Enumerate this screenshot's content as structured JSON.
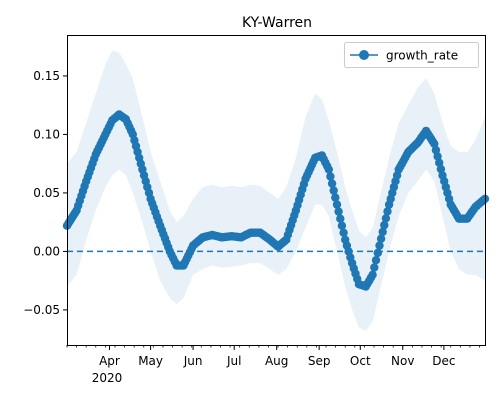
{
  "chart_data": {
    "type": "line",
    "title": "KY-Warren",
    "xlabel": "",
    "ylabel": "",
    "x_year_label": "2020",
    "ylim": [
      -0.08,
      0.185
    ],
    "x_range": [
      "2020-03-01",
      "2020-12-31"
    ],
    "y_ticks": [
      {
        "value": -0.05,
        "label": "−0.05"
      },
      {
        "value": 0.0,
        "label": "0.00"
      },
      {
        "value": 0.05,
        "label": "0.05"
      },
      {
        "value": 0.1,
        "label": "0.10"
      },
      {
        "value": 0.15,
        "label": "0.15"
      }
    ],
    "x_ticks": [
      {
        "date": "2020-04-01",
        "label": "Apr"
      },
      {
        "date": "2020-05-01",
        "label": "May"
      },
      {
        "date": "2020-06-01",
        "label": "Jun"
      },
      {
        "date": "2020-07-01",
        "label": "Jul"
      },
      {
        "date": "2020-08-01",
        "label": "Aug"
      },
      {
        "date": "2020-09-01",
        "label": "Sep"
      },
      {
        "date": "2020-10-01",
        "label": "Oct"
      },
      {
        "date": "2020-11-01",
        "label": "Nov"
      },
      {
        "date": "2020-12-01",
        "label": "Dec"
      }
    ],
    "reference_line": {
      "y": 0.0,
      "style": "dashed"
    },
    "grid": false,
    "legend": {
      "position": "top-right",
      "entries": [
        "growth_rate"
      ]
    },
    "series": [
      {
        "name": "growth_rate",
        "color": "#1f77b4",
        "band_color": "#1f77b4",
        "points": [
          {
            "date": "2020-03-01",
            "y": 0.022,
            "lo": -0.03,
            "hi": 0.075
          },
          {
            "date": "2020-03-08",
            "y": 0.035,
            "lo": -0.02,
            "hi": 0.085
          },
          {
            "date": "2020-03-15",
            "y": 0.06,
            "lo": 0.01,
            "hi": 0.11
          },
          {
            "date": "2020-03-22",
            "y": 0.083,
            "lo": 0.035,
            "hi": 0.135
          },
          {
            "date": "2020-03-29",
            "y": 0.1,
            "lo": 0.055,
            "hi": 0.16
          },
          {
            "date": "2020-04-03",
            "y": 0.112,
            "lo": 0.065,
            "hi": 0.172
          },
          {
            "date": "2020-04-08",
            "y": 0.117,
            "lo": 0.07,
            "hi": 0.17
          },
          {
            "date": "2020-04-13",
            "y": 0.113,
            "lo": 0.065,
            "hi": 0.16
          },
          {
            "date": "2020-04-18",
            "y": 0.1,
            "lo": 0.05,
            "hi": 0.148
          },
          {
            "date": "2020-04-25",
            "y": 0.07,
            "lo": 0.025,
            "hi": 0.115
          },
          {
            "date": "2020-05-01",
            "y": 0.045,
            "lo": 0.0,
            "hi": 0.085
          },
          {
            "date": "2020-05-08",
            "y": 0.022,
            "lo": -0.025,
            "hi": 0.06
          },
          {
            "date": "2020-05-15",
            "y": 0.0,
            "lo": -0.04,
            "hi": 0.035
          },
          {
            "date": "2020-05-20",
            "y": -0.012,
            "lo": -0.045,
            "hi": 0.025
          },
          {
            "date": "2020-05-25",
            "y": -0.012,
            "lo": -0.04,
            "hi": 0.03
          },
          {
            "date": "2020-06-01",
            "y": 0.005,
            "lo": -0.02,
            "hi": 0.045
          },
          {
            "date": "2020-06-08",
            "y": 0.012,
            "lo": -0.015,
            "hi": 0.055
          },
          {
            "date": "2020-06-15",
            "y": 0.014,
            "lo": -0.012,
            "hi": 0.057
          },
          {
            "date": "2020-06-22",
            "y": 0.012,
            "lo": -0.014,
            "hi": 0.055
          },
          {
            "date": "2020-06-29",
            "y": 0.013,
            "lo": -0.013,
            "hi": 0.056
          },
          {
            "date": "2020-07-06",
            "y": 0.012,
            "lo": -0.012,
            "hi": 0.055
          },
          {
            "date": "2020-07-13",
            "y": 0.016,
            "lo": -0.01,
            "hi": 0.057
          },
          {
            "date": "2020-07-20",
            "y": 0.016,
            "lo": -0.01,
            "hi": 0.056
          },
          {
            "date": "2020-07-27",
            "y": 0.01,
            "lo": -0.015,
            "hi": 0.05
          },
          {
            "date": "2020-08-02",
            "y": 0.004,
            "lo": -0.02,
            "hi": 0.045
          },
          {
            "date": "2020-08-08",
            "y": 0.01,
            "lo": -0.015,
            "hi": 0.055
          },
          {
            "date": "2020-08-15",
            "y": 0.035,
            "lo": 0.0,
            "hi": 0.08
          },
          {
            "date": "2020-08-22",
            "y": 0.062,
            "lo": 0.02,
            "hi": 0.115
          },
          {
            "date": "2020-08-29",
            "y": 0.08,
            "lo": 0.04,
            "hi": 0.135
          },
          {
            "date": "2020-09-03",
            "y": 0.082,
            "lo": 0.04,
            "hi": 0.13
          },
          {
            "date": "2020-09-08",
            "y": 0.07,
            "lo": 0.03,
            "hi": 0.112
          },
          {
            "date": "2020-09-14",
            "y": 0.04,
            "lo": 0.0,
            "hi": 0.085
          },
          {
            "date": "2020-09-20",
            "y": 0.01,
            "lo": -0.03,
            "hi": 0.055
          },
          {
            "date": "2020-09-25",
            "y": -0.01,
            "lo": -0.05,
            "hi": 0.035
          },
          {
            "date": "2020-09-30",
            "y": -0.028,
            "lo": -0.065,
            "hi": 0.018
          },
          {
            "date": "2020-10-05",
            "y": -0.03,
            "lo": -0.068,
            "hi": 0.012
          },
          {
            "date": "2020-10-10",
            "y": -0.02,
            "lo": -0.06,
            "hi": 0.02
          },
          {
            "date": "2020-10-15",
            "y": 0.005,
            "lo": -0.035,
            "hi": 0.045
          },
          {
            "date": "2020-10-22",
            "y": 0.04,
            "lo": 0.0,
            "hi": 0.08
          },
          {
            "date": "2020-10-29",
            "y": 0.07,
            "lo": 0.03,
            "hi": 0.11
          },
          {
            "date": "2020-11-05",
            "y": 0.085,
            "lo": 0.05,
            "hi": 0.125
          },
          {
            "date": "2020-11-12",
            "y": 0.093,
            "lo": 0.06,
            "hi": 0.14
          },
          {
            "date": "2020-11-18",
            "y": 0.103,
            "lo": 0.07,
            "hi": 0.148
          },
          {
            "date": "2020-11-24",
            "y": 0.092,
            "lo": 0.06,
            "hi": 0.135
          },
          {
            "date": "2020-11-30",
            "y": 0.065,
            "lo": 0.03,
            "hi": 0.11
          },
          {
            "date": "2020-12-06",
            "y": 0.04,
            "lo": 0.0,
            "hi": 0.09
          },
          {
            "date": "2020-12-12",
            "y": 0.028,
            "lo": -0.015,
            "hi": 0.085
          },
          {
            "date": "2020-12-18",
            "y": 0.028,
            "lo": -0.02,
            "hi": 0.085
          },
          {
            "date": "2020-12-24",
            "y": 0.038,
            "lo": -0.02,
            "hi": 0.095
          },
          {
            "date": "2020-12-31",
            "y": 0.045,
            "lo": -0.025,
            "hi": 0.115
          }
        ]
      }
    ]
  }
}
